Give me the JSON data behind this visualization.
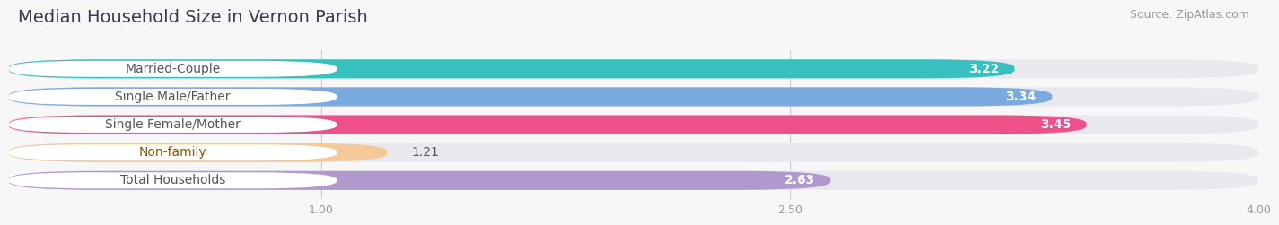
{
  "title": "Median Household Size in Vernon Parish",
  "source": "Source: ZipAtlas.com",
  "categories": [
    "Married-Couple",
    "Single Male/Father",
    "Single Female/Mother",
    "Non-family",
    "Total Households"
  ],
  "values": [
    3.22,
    3.34,
    3.45,
    1.21,
    2.63
  ],
  "bar_colors": [
    "#38bfbf",
    "#7aaade",
    "#f0508a",
    "#f5c898",
    "#b09acd"
  ],
  "label_text_colors": [
    "#555555",
    "#555555",
    "#555555",
    "#885500",
    "#555555"
  ],
  "xlim_min": 0,
  "xlim_max": 4.0,
  "xticks": [
    1.0,
    2.5,
    4.0
  ],
  "xtick_labels": [
    "1.00",
    "2.50",
    "4.00"
  ],
  "title_fontsize": 14,
  "source_fontsize": 9,
  "label_fontsize": 10,
  "value_fontsize": 10,
  "background_color": "#f7f7f7",
  "bar_background_color": "#e8e8ee",
  "label_bg_color": "#ffffff",
  "value_color_inside": "#ffffff",
  "value_color_outside": "#555555"
}
